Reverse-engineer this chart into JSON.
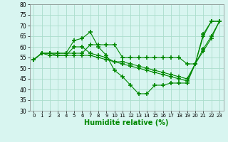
{
  "xlabel": "Humidité relative (%)",
  "background_color": "#d8f5f0",
  "grid_color": "#aaddcc",
  "line_color": "#008800",
  "marker": "+",
  "xlim": [
    -0.5,
    23.5
  ],
  "ylim": [
    30,
    80
  ],
  "yticks": [
    30,
    35,
    40,
    45,
    50,
    55,
    60,
    65,
    70,
    75,
    80
  ],
  "xticks": [
    0,
    1,
    2,
    3,
    4,
    5,
    6,
    7,
    8,
    9,
    10,
    11,
    12,
    13,
    14,
    15,
    16,
    17,
    18,
    19,
    20,
    21,
    22,
    23
  ],
  "series": [
    [
      54,
      57,
      57,
      57,
      57,
      57,
      57,
      61,
      61,
      61,
      61,
      55,
      55,
      55,
      55,
      55,
      55,
      55,
      55,
      52,
      52,
      66,
      72,
      72
    ],
    [
      54,
      57,
      57,
      57,
      57,
      63,
      64,
      67,
      60,
      56,
      49,
      46,
      42,
      38,
      38,
      42,
      42,
      43,
      43,
      43,
      52,
      65,
      72,
      72
    ],
    [
      54,
      57,
      57,
      56,
      56,
      60,
      60,
      57,
      56,
      55,
      53,
      52,
      51,
      50,
      49,
      48,
      47,
      46,
      45,
      44,
      52,
      59,
      65,
      72
    ],
    [
      54,
      57,
      56,
      56,
      56,
      56,
      56,
      56,
      55,
      54,
      53,
      53,
      52,
      51,
      50,
      49,
      48,
      47,
      46,
      45,
      52,
      58,
      64,
      72
    ]
  ]
}
